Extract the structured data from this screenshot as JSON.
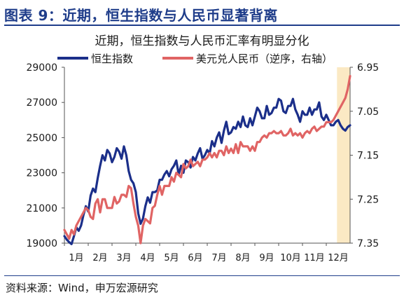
{
  "header": {
    "title": "图表 9：近期，恒生指数与人民币显著背离"
  },
  "source": "资料来源：Wind，申万宏源研究",
  "colors": {
    "hsi": "#1b2f8a",
    "usdcny": "#e06464",
    "highlight": "#fbe9c4",
    "brand": "#1f3d8a"
  },
  "chart_data": {
    "type": "line",
    "title": "近期，恒生指数与人民币汇率有明显分化",
    "x_ticks": [
      "1月",
      "2月",
      "3月",
      "4月",
      "5月",
      "6月",
      "7月",
      "8月",
      "9月",
      "10月",
      "11月",
      "12月"
    ],
    "y_left": {
      "lim": [
        19000,
        29000
      ],
      "ticks": [
        "29000",
        "27000",
        "25000",
        "23000",
        "21000",
        "19000"
      ]
    },
    "y_right": {
      "lim": [
        6.95,
        7.35
      ],
      "inverted": true,
      "ticks": [
        "6.95",
        "7.05",
        "7.15",
        "7.25",
        "7.35"
      ]
    },
    "highlight_range": [
      11.45,
      12.0
    ],
    "legend_position": "top",
    "series": [
      {
        "name": "恒生指数",
        "axis": "left",
        "color": "#1b2f8a",
        "x": [
          0.0,
          0.1,
          0.2,
          0.3,
          0.4,
          0.5,
          0.6,
          0.7,
          0.8,
          0.9,
          1.0,
          1.1,
          1.2,
          1.3,
          1.4,
          1.5,
          1.6,
          1.7,
          1.8,
          1.9,
          2.0,
          2.1,
          2.2,
          2.3,
          2.4,
          2.5,
          2.6,
          2.7,
          2.8,
          2.9,
          3.0,
          3.1,
          3.2,
          3.3,
          3.4,
          3.5,
          3.6,
          3.7,
          3.8,
          3.9,
          4.0,
          4.1,
          4.2,
          4.3,
          4.4,
          4.5,
          4.6,
          4.7,
          4.8,
          4.9,
          5.0,
          5.1,
          5.2,
          5.3,
          5.4,
          5.5,
          5.6,
          5.7,
          5.8,
          5.9,
          6.0,
          6.1,
          6.2,
          6.3,
          6.4,
          6.5,
          6.6,
          6.7,
          6.8,
          6.9,
          7.0,
          7.1,
          7.2,
          7.3,
          7.4,
          7.5,
          7.6,
          7.7,
          7.8,
          7.9,
          8.0,
          8.1,
          8.2,
          8.3,
          8.4,
          8.5,
          8.6,
          8.7,
          8.8,
          8.9,
          9.0,
          9.1,
          9.2,
          9.3,
          9.4,
          9.5,
          9.6,
          9.7,
          9.8,
          9.9,
          10.0,
          10.1,
          10.2,
          10.3,
          10.4,
          10.5,
          10.6,
          10.7,
          10.8,
          10.9,
          11.0,
          11.1,
          11.2,
          11.3,
          11.4,
          11.5,
          11.6,
          11.7,
          11.8,
          11.9,
          12.0
        ],
        "y": [
          19400,
          19200,
          19050,
          18950,
          19400,
          19900,
          19700,
          20000,
          20600,
          21100,
          20800,
          21700,
          22100,
          21900,
          22700,
          23400,
          24000,
          23700,
          24300,
          24100,
          23600,
          23900,
          24400,
          24200,
          23800,
          24500,
          24000,
          23100,
          22600,
          22400,
          21900,
          20700,
          20100,
          20400,
          21100,
          21600,
          21300,
          21900,
          21900,
          22000,
          22600,
          22600,
          22900,
          23100,
          22800,
          23200,
          23400,
          23700,
          22900,
          23400,
          23000,
          23700,
          23600,
          23300,
          23900,
          23700,
          24100,
          24400,
          23800,
          24000,
          24300,
          24100,
          24800,
          24500,
          25000,
          25300,
          24700,
          25400,
          25900,
          25200,
          25300,
          25600,
          25500,
          25900,
          25600,
          26200,
          25700,
          25600,
          26100,
          25700,
          26200,
          26700,
          26500,
          26100,
          26100,
          26800,
          26300,
          26400,
          26700,
          26700,
          27200,
          27100,
          26500,
          26400,
          26800,
          26800,
          27200,
          26600,
          26300,
          25900,
          26500,
          26300,
          26300,
          26700,
          26300,
          26600,
          26600,
          27000,
          26200,
          26000,
          26300,
          26000,
          25700,
          25700,
          25900,
          26000,
          25700,
          25500,
          25400,
          25600,
          25700
        ]
      },
      {
        "name": "美元兑人民币（逆序，右轴）",
        "axis": "right",
        "color": "#e06464",
        "x": [
          0.0,
          0.1,
          0.2,
          0.3,
          0.4,
          0.5,
          0.6,
          0.7,
          0.8,
          0.9,
          1.0,
          1.1,
          1.2,
          1.3,
          1.4,
          1.5,
          1.6,
          1.7,
          1.8,
          1.9,
          2.0,
          2.1,
          2.2,
          2.3,
          2.4,
          2.5,
          2.6,
          2.7,
          2.8,
          2.9,
          3.0,
          3.1,
          3.2,
          3.3,
          3.4,
          3.5,
          3.6,
          3.7,
          3.8,
          3.9,
          4.0,
          4.1,
          4.2,
          4.3,
          4.4,
          4.5,
          4.6,
          4.7,
          4.8,
          4.9,
          5.0,
          5.1,
          5.2,
          5.3,
          5.4,
          5.5,
          5.6,
          5.7,
          5.8,
          5.9,
          6.0,
          6.1,
          6.2,
          6.3,
          6.4,
          6.5,
          6.6,
          6.7,
          6.8,
          6.9,
          7.0,
          7.1,
          7.2,
          7.3,
          7.4,
          7.5,
          7.6,
          7.7,
          7.8,
          7.9,
          8.0,
          8.1,
          8.2,
          8.3,
          8.4,
          8.5,
          8.6,
          8.7,
          8.8,
          8.9,
          9.0,
          9.1,
          9.2,
          9.3,
          9.4,
          9.5,
          9.6,
          9.7,
          9.8,
          9.9,
          10.0,
          10.1,
          10.2,
          10.3,
          10.4,
          10.5,
          10.6,
          10.7,
          10.8,
          10.9,
          11.0,
          11.1,
          11.2,
          11.3,
          11.4,
          11.5,
          11.6,
          11.7,
          11.8,
          11.9,
          12.0
        ],
        "y": [
          7.32,
          7.33,
          7.34,
          7.32,
          7.33,
          7.31,
          7.3,
          7.29,
          7.28,
          7.27,
          7.275,
          7.29,
          7.295,
          7.26,
          7.25,
          7.28,
          7.25,
          7.25,
          7.27,
          7.27,
          7.27,
          7.245,
          7.26,
          7.255,
          7.24,
          7.24,
          7.245,
          7.22,
          7.225,
          7.26,
          7.29,
          7.31,
          7.35,
          7.31,
          7.295,
          7.3,
          7.305,
          7.27,
          7.265,
          7.24,
          7.22,
          7.24,
          7.22,
          7.22,
          7.22,
          7.2,
          7.21,
          7.19,
          7.195,
          7.2,
          7.17,
          7.18,
          7.175,
          7.16,
          7.175,
          7.17,
          7.165,
          7.175,
          7.16,
          7.16,
          7.155,
          7.145,
          7.155,
          7.145,
          7.155,
          7.14,
          7.14,
          7.15,
          7.13,
          7.145,
          7.135,
          7.145,
          7.125,
          7.145,
          7.12,
          7.13,
          7.13,
          7.13,
          7.14,
          7.13,
          7.14,
          7.12,
          7.12,
          7.11,
          7.105,
          7.11,
          7.1,
          7.1,
          7.095,
          7.1,
          7.1,
          7.095,
          7.105,
          7.105,
          7.1,
          7.09,
          7.105,
          7.1,
          7.105,
          7.1,
          7.11,
          7.1,
          7.095,
          7.1,
          7.09,
          7.085,
          7.095,
          7.09,
          7.085,
          7.085,
          7.075,
          7.075,
          7.075,
          7.07,
          7.06,
          7.05,
          7.04,
          7.03,
          7.02,
          7.0,
          6.97
        ]
      }
    ]
  }
}
